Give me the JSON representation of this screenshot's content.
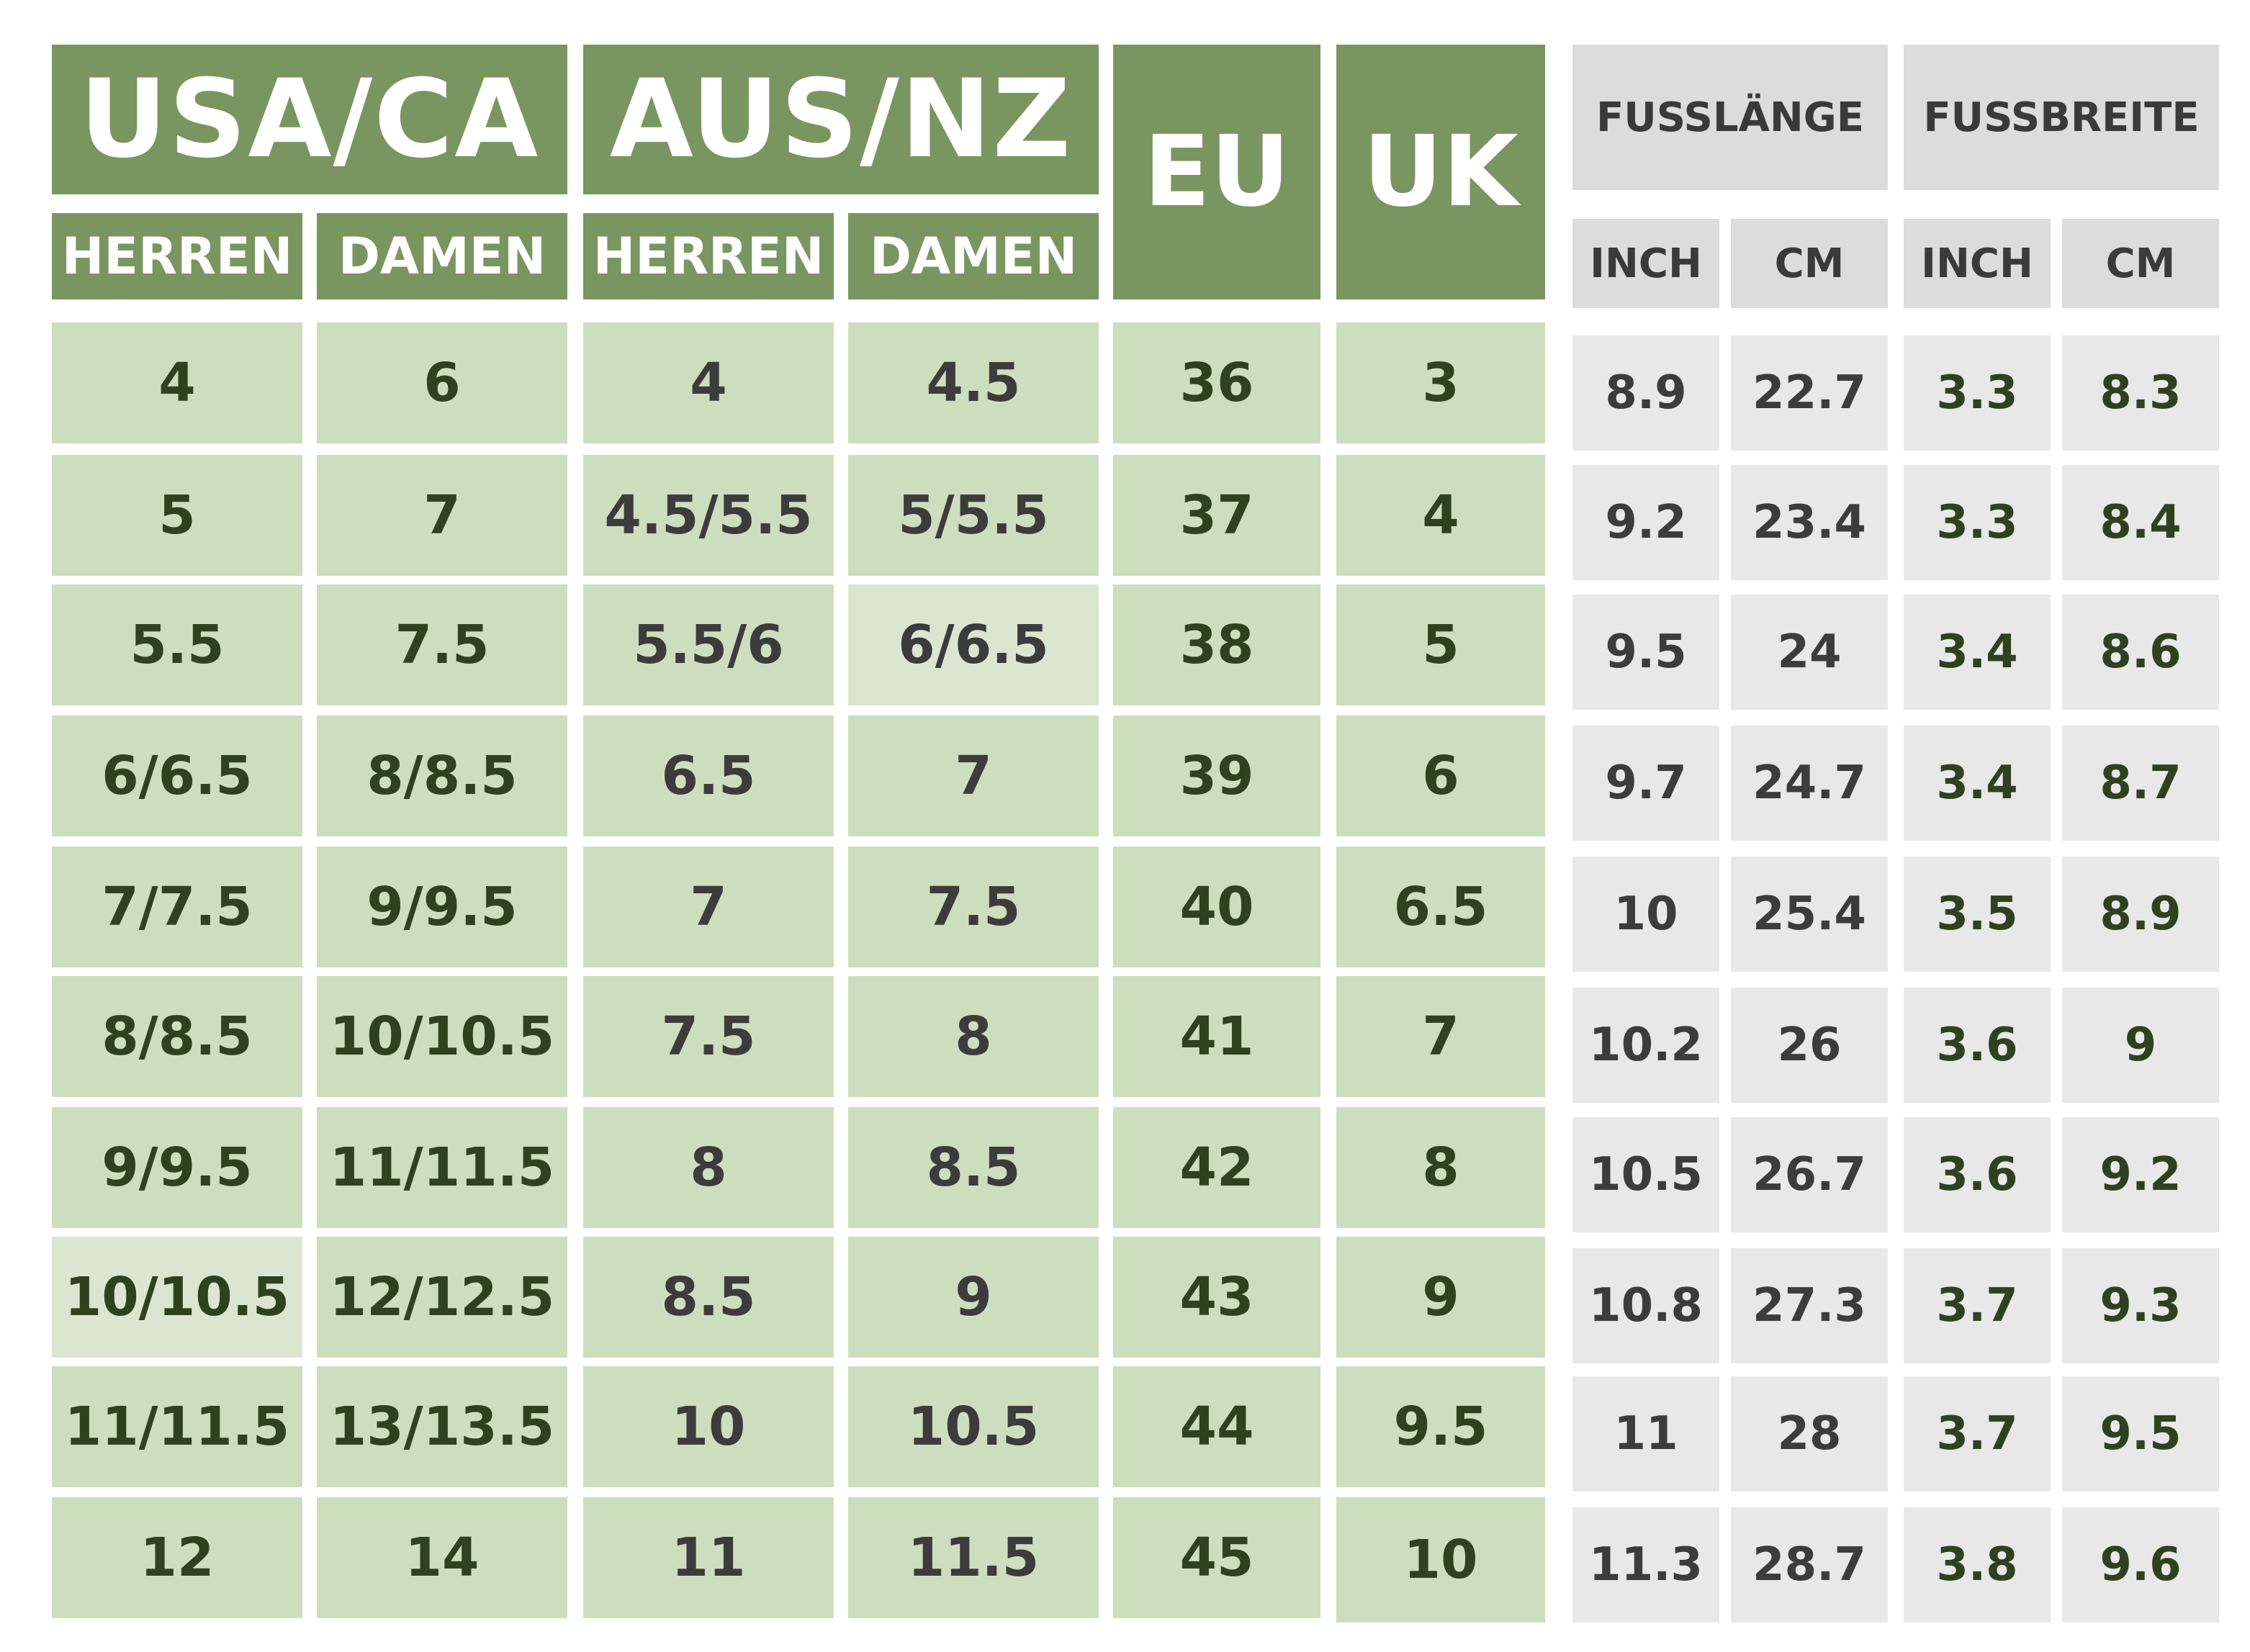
{
  "headers": {
    "usa_ca": "USA/CA",
    "aus_nz": "AUS/NZ",
    "eu": "EU",
    "uk": "UK",
    "fusslaenge": "FUSSLÄNGE",
    "fussbreite": "FUSSBREITE",
    "usa_herren": "HERREN",
    "usa_damen": "DAMEN",
    "aus_herren": "HERREN",
    "aus_damen": "DAMEN",
    "len_inch": "INCH",
    "len_cm": "CM",
    "wid_inch": "INCH",
    "wid_cm": "CM"
  },
  "rows": [
    {
      "usa_herren": "4",
      "usa_damen": "6",
      "aus_herren": "4",
      "aus_damen": "4.5",
      "eu": "36",
      "uk": "3",
      "len_inch": "8.9",
      "len_cm": "22.7",
      "wid_inch": "3.3",
      "wid_cm": "8.3"
    },
    {
      "usa_herren": "5",
      "usa_damen": "7",
      "aus_herren": "4.5/5.5",
      "aus_damen": "5/5.5",
      "eu": "37",
      "uk": "4",
      "len_inch": "9.2",
      "len_cm": "23.4",
      "wid_inch": "3.3",
      "wid_cm": "8.4"
    },
    {
      "usa_herren": "5.5",
      "usa_damen": "7.5",
      "aus_herren": "5.5/6",
      "aus_damen": "6/6.5",
      "eu": "38",
      "uk": "5",
      "len_inch": "9.5",
      "len_cm": "24",
      "wid_inch": "3.4",
      "wid_cm": "8.6"
    },
    {
      "usa_herren": "6/6.5",
      "usa_damen": "8/8.5",
      "aus_herren": "6.5",
      "aus_damen": "7",
      "eu": "39",
      "uk": "6",
      "len_inch": "9.7",
      "len_cm": "24.7",
      "wid_inch": "3.4",
      "wid_cm": "8.7"
    },
    {
      "usa_herren": "7/7.5",
      "usa_damen": "9/9.5",
      "aus_herren": "7",
      "aus_damen": "7.5",
      "eu": "40",
      "uk": "6.5",
      "len_inch": "10",
      "len_cm": "25.4",
      "wid_inch": "3.5",
      "wid_cm": "8.9"
    },
    {
      "usa_herren": "8/8.5",
      "usa_damen": "10/10.5",
      "aus_herren": "7.5",
      "aus_damen": "8",
      "eu": "41",
      "uk": "7",
      "len_inch": "10.2",
      "len_cm": "26",
      "wid_inch": "3.6",
      "wid_cm": "9"
    },
    {
      "usa_herren": "9/9.5",
      "usa_damen": "11/11.5",
      "aus_herren": "8",
      "aus_damen": "8.5",
      "eu": "42",
      "uk": "8",
      "len_inch": "10.5",
      "len_cm": "26.7",
      "wid_inch": "3.6",
      "wid_cm": "9.2"
    },
    {
      "usa_herren": "10/10.5",
      "usa_damen": "12/12.5",
      "aus_herren": "8.5",
      "aus_damen": "9",
      "eu": "43",
      "uk": "9",
      "len_inch": "10.8",
      "len_cm": "27.3",
      "wid_inch": "3.7",
      "wid_cm": "9.3"
    },
    {
      "usa_herren": "11/11.5",
      "usa_damen": "13/13.5",
      "aus_herren": "10",
      "aus_damen": "10.5",
      "eu": "44",
      "uk": "9.5",
      "len_inch": "11",
      "len_cm": "28",
      "wid_inch": "3.7",
      "wid_cm": "9.5"
    },
    {
      "usa_herren": "12",
      "usa_damen": "14",
      "aus_herren": "11",
      "aus_damen": "11.5",
      "eu": "45",
      "uk": "10",
      "len_inch": "11.3",
      "len_cm": "28.7",
      "wid_inch": "3.8",
      "wid_cm": "9.6"
    }
  ]
}
